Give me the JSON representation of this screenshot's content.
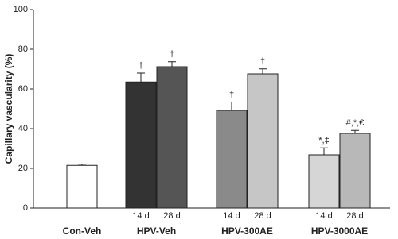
{
  "chart_data": {
    "type": "grouped-bar",
    "y_label": "Capillary vascularity (%)",
    "ylim": [
      0,
      100
    ],
    "yticks": [
      0,
      20,
      40,
      60,
      80,
      100
    ],
    "groups": [
      {
        "name": "Con-Veh",
        "bars": [
          {
            "sub_label": null,
            "value": 21.5,
            "error": 0.6,
            "color": "#ffffff",
            "annotation": null
          }
        ]
      },
      {
        "name": "HPV-Veh",
        "bars": [
          {
            "sub_label": "14 d",
            "value": 63.5,
            "error": 4.5,
            "color": "#333333",
            "annotation": "†"
          },
          {
            "sub_label": "28 d",
            "value": 71.2,
            "error": 2.5,
            "color": "#555555",
            "annotation": "†"
          }
        ]
      },
      {
        "name": "HPV-300AE",
        "bars": [
          {
            "sub_label": "14 d",
            "value": 49.2,
            "error": 4.2,
            "color": "#8a8a8a",
            "annotation": "†"
          },
          {
            "sub_label": "28 d",
            "value": 67.6,
            "error": 2.5,
            "color": "#c6c6c6",
            "annotation": "†"
          }
        ]
      },
      {
        "name": "HPV-3000AE",
        "bars": [
          {
            "sub_label": "14 d",
            "value": 26.8,
            "error": 3.5,
            "color": "#d6d6d6",
            "annotation": "*,‡"
          },
          {
            "sub_label": "28 d",
            "value": 37.6,
            "error": 1.5,
            "color": "#b8b8b8",
            "annotation": "#,*,€"
          }
        ]
      }
    ]
  }
}
